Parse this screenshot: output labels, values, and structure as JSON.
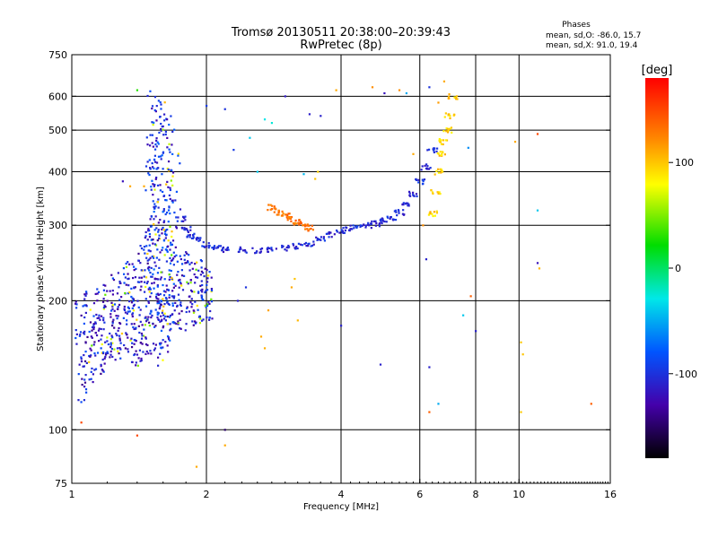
{
  "chart_data": {
    "type": "scatter",
    "title": "Tromsø 20130511 20:38:00–20:39:43",
    "subtitle": "RwPretec (8p)",
    "xlabel": "Frequency [MHz]",
    "ylabel": "Stationary phase Virtual Height [km]",
    "x_scale": "log",
    "y_scale": "log",
    "xlim": [
      1,
      16
    ],
    "ylim": [
      75,
      750
    ],
    "x_ticks": [
      1,
      2,
      4,
      6,
      8,
      10,
      16
    ],
    "y_ticks": [
      75,
      100,
      200,
      300,
      400,
      500,
      600,
      750
    ],
    "grid": true,
    "info": {
      "heading": "Phases",
      "line_o": "mean, sd,O: -86.0, 15.7",
      "line_x": "mean, sd,X:  91.0, 19.4"
    },
    "colorbar": {
      "label": "[deg]",
      "ticks": [
        100,
        0,
        -100
      ],
      "range": [
        -180,
        180
      ]
    },
    "traces": [
      {
        "name": "",
        "x": [
          1.5,
          1.52,
          1.55,
          1.57,
          1.6,
          1.62,
          1.65,
          1.7
        ],
        "y_min": [
          160,
          175,
          150,
          140,
          145,
          155,
          160,
          170
        ],
        "y_max": [
          640,
          620,
          600,
          590,
          580,
          560,
          520,
          480
        ],
        "phase": -100
      },
      {
        "name": "",
        "x": [
          1.75,
          1.8,
          1.85,
          1.9,
          2.0,
          2.1,
          2.2,
          2.4,
          2.6,
          2.8,
          3.0,
          3.2,
          3.4,
          3.6,
          3.8,
          4.0,
          4.2,
          4.4,
          4.6,
          4.8,
          5.0,
          5.2,
          5.4,
          5.6,
          5.8,
          6.0,
          6.2,
          6.4
        ],
        "y": [
          310,
          295,
          285,
          278,
          270,
          266,
          264,
          263,
          262,
          263,
          265,
          268,
          272,
          278,
          285,
          292,
          296,
          298,
          300,
          303,
          307,
          313,
          322,
          335,
          355,
          380,
          410,
          450
        ],
        "phase": -105
      },
      {
        "name": "",
        "x": [
          6.4,
          6.5,
          6.6,
          6.7,
          6.8,
          6.9,
          7.0,
          7.1
        ],
        "y": [
          320,
          360,
          400,
          440,
          470,
          500,
          540,
          600
        ],
        "phase": 95
      },
      {
        "name": "",
        "x": [
          2.8,
          2.9,
          3.0,
          3.1,
          3.2,
          3.3,
          3.4
        ],
        "y": [
          330,
          320,
          315,
          310,
          305,
          300,
          295
        ],
        "phase": 130
      },
      {
        "name": "",
        "x": [
          1.05,
          1.1,
          1.15,
          1.2,
          1.25,
          1.3,
          1.35,
          1.4,
          1.45,
          1.5,
          1.6,
          1.7,
          1.8,
          1.9,
          2.0
        ],
        "y_min": [
          115,
          125,
          135,
          140,
          140,
          145,
          140,
          140,
          150,
          150,
          160,
          170,
          170,
          175,
          180
        ],
        "y_max": [
          200,
          210,
          215,
          220,
          230,
          240,
          250,
          260,
          270,
          300,
          320,
          280,
          260,
          250,
          240
        ],
        "phase": -110
      }
    ],
    "sparse_points": [
      {
        "x": 3.1,
        "y": 215,
        "phase": 110
      },
      {
        "x": 3.15,
        "y": 225,
        "phase": 100
      },
      {
        "x": 3.2,
        "y": 180,
        "phase": 105
      },
      {
        "x": 3.5,
        "y": 385,
        "phase": 100
      },
      {
        "x": 3.55,
        "y": 400,
        "phase": 95
      },
      {
        "x": 3.6,
        "y": 540,
        "phase": -110
      },
      {
        "x": 3.4,
        "y": 545,
        "phase": -112
      },
      {
        "x": 3.0,
        "y": 600,
        "phase": -115
      },
      {
        "x": 2.7,
        "y": 530,
        "phase": -30
      },
      {
        "x": 2.8,
        "y": 520,
        "phase": -25
      },
      {
        "x": 2.5,
        "y": 480,
        "phase": -40
      },
      {
        "x": 2.6,
        "y": 400,
        "phase": -40
      },
      {
        "x": 2.2,
        "y": 560,
        "phase": -100
      },
      {
        "x": 2.0,
        "y": 570,
        "phase": -95
      },
      {
        "x": 2.3,
        "y": 450,
        "phase": -95
      },
      {
        "x": 3.9,
        "y": 620,
        "phase": 110
      },
      {
        "x": 4.7,
        "y": 630,
        "phase": 120
      },
      {
        "x": 5.0,
        "y": 610,
        "phase": -120
      },
      {
        "x": 5.4,
        "y": 620,
        "phase": 120
      },
      {
        "x": 6.3,
        "y": 630,
        "phase": -100
      },
      {
        "x": 6.8,
        "y": 650,
        "phase": 110
      },
      {
        "x": 6.6,
        "y": 580,
        "phase": 115
      },
      {
        "x": 2.65,
        "y": 165,
        "phase": 110
      },
      {
        "x": 2.7,
        "y": 155,
        "phase": 108
      },
      {
        "x": 2.75,
        "y": 190,
        "phase": 112
      },
      {
        "x": 2.35,
        "y": 200,
        "phase": -110
      },
      {
        "x": 2.45,
        "y": 215,
        "phase": -100
      },
      {
        "x": 4.0,
        "y": 175,
        "phase": -110
      },
      {
        "x": 6.1,
        "y": 300,
        "phase": 120
      },
      {
        "x": 6.2,
        "y": 250,
        "phase": -110
      },
      {
        "x": 6.3,
        "y": 140,
        "phase": -110
      },
      {
        "x": 6.6,
        "y": 115,
        "phase": -50
      },
      {
        "x": 6.3,
        "y": 110,
        "phase": 140
      },
      {
        "x": 7.5,
        "y": 185,
        "phase": -40
      },
      {
        "x": 7.8,
        "y": 205,
        "phase": 140
      },
      {
        "x": 7.7,
        "y": 455,
        "phase": -60
      },
      {
        "x": 8.0,
        "y": 170,
        "phase": -110
      },
      {
        "x": 9.8,
        "y": 470,
        "phase": 110
      },
      {
        "x": 10.1,
        "y": 160,
        "phase": 100
      },
      {
        "x": 10.2,
        "y": 150,
        "phase": 100
      },
      {
        "x": 10.1,
        "y": 110,
        "phase": 100
      },
      {
        "x": 11.0,
        "y": 490,
        "phase": 150
      },
      {
        "x": 11.0,
        "y": 325,
        "phase": -40
      },
      {
        "x": 11.0,
        "y": 245,
        "phase": -120
      },
      {
        "x": 11.1,
        "y": 238,
        "phase": 105
      },
      {
        "x": 14.5,
        "y": 115,
        "phase": 140
      },
      {
        "x": 4.9,
        "y": 142,
        "phase": -110
      },
      {
        "x": 2.2,
        "y": 100,
        "phase": -150
      },
      {
        "x": 2.2,
        "y": 92,
        "phase": 110
      },
      {
        "x": 1.9,
        "y": 82,
        "phase": 110
      },
      {
        "x": 1.4,
        "y": 97,
        "phase": 150
      },
      {
        "x": 1.05,
        "y": 104,
        "phase": 150
      },
      {
        "x": 1.3,
        "y": 380,
        "phase": -120
      },
      {
        "x": 1.35,
        "y": 370,
        "phase": 110
      },
      {
        "x": 1.4,
        "y": 620,
        "phase": 30
      },
      {
        "x": 1.45,
        "y": 370,
        "phase": 110
      },
      {
        "x": 3.3,
        "y": 395,
        "phase": -45
      },
      {
        "x": 5.8,
        "y": 440,
        "phase": 110
      },
      {
        "x": 5.6,
        "y": 610,
        "phase": -50
      }
    ]
  }
}
